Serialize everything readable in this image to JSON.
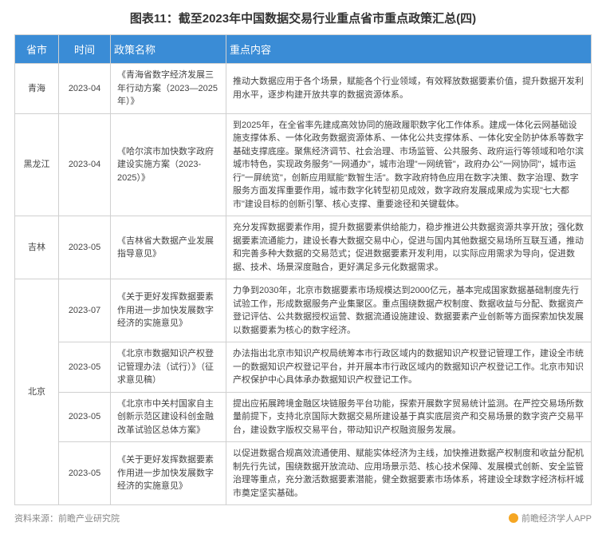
{
  "title": "图表11：截至2023年中国数据交易行业重点省市重点政策汇总(四)",
  "columns": [
    "省市",
    "时间",
    "政策名称",
    "重点内容"
  ],
  "rows": [
    {
      "province": "青海",
      "rowspan_province": 1,
      "time": "2023-04",
      "policy": "《青海省数字经济发展三年行动方案（2023—2025年）》",
      "content": "推动大数据应用于各个场景，赋能各个行业领域，有效释放数据要素价值，提升数据开发利用水平，逐步构建开放共享的数据资源体系。"
    },
    {
      "province": "黑龙江",
      "rowspan_province": 1,
      "time": "2023-04",
      "policy": "《哈尔滨市加快数字政府建设实施方案（2023-2025）》",
      "content": "到2025年，在全省率先建成高效协同的施政履职数字化工作体系。建成一体化云网基础设施支撑体系、一体化政务数据资源体系、一体化公共支撑体系、一体化安全防护体系等数字基础支撑底座。聚焦经济调节、社会治理、市场监管、公共服务、政府运行等领域和哈尔滨城市特色，实现政务服务\"一网通办\"，城市治理\"一网统管\"，政府办公\"一网协同\"，城市运行\"一屏统览\"，创新应用赋能\"数智生活\"。数字政府特色应用在数字决策、数字治理、数字服务方面发挥重要作用，城市数字化转型初见成效，数字政府发展成果成为实现\"七大都市\"建设目标的创新引擎、核心支撑、重要途径和关键载体。"
    },
    {
      "province": "吉林",
      "rowspan_province": 1,
      "time": "2023-05",
      "policy": "《吉林省大数据产业发展指导意见》",
      "content": "充分发挥数据要素作用，提升数据要素供给能力，稳步推进公共数据资源共享开放；强化数据要素流通能力，建设长春大数据交易中心，促进与国内其他数据交易场所互联互通，推动和完善多种大数据的交易范式；促进数据要素开发利用，以实际应用需求为导向，促进数据、技术、场景深度融合，更好满足多元化数据需求。"
    },
    {
      "province": "北京",
      "rowspan_province": 4,
      "time": "2023-07",
      "policy": "《关于更好发挥数据要素作用进一步加快发展数字经济的实施意见》",
      "content": "力争到2030年，北京市数据要素市场规模达到2000亿元，基本完成国家数据基础制度先行试验工作，形成数据服务产业集聚区。重点围绕数据产权制度、数据收益与分配、数据资产登记评估、公共数据授权运营、数据流通设施建设、数据要素产业创新等方面探索加快发展以数据要素为核心的数字经济。"
    },
    {
      "province": "",
      "rowspan_province": 0,
      "time": "2023-05",
      "policy": "《北京市数据知识产权登记管理办法（试行）》（征求意见稿）",
      "content": "办法指出北京市知识产权局统筹本市行政区域内的数据知识产权登记管理工作，建设全市统一的数据知识产权登记平台，并开展本市行政区域内的数据知识产权登记工作。北京市知识产权保护中心具体承办数据知识产权登记工作。"
    },
    {
      "province": "",
      "rowspan_province": 0,
      "time": "2023-05",
      "policy": "《北京市中关村国家自主创新示范区建设科创金融改革试验区总体方案》",
      "content": "提出应拓展跨境金融区块链服务平台功能，探索开展数字贸易统计监测。在严控交易场所数量前提下，支持北京国际大数据交易所建设基于真实底层资产和交易场景的数字资产交易平台，建设数字版权交易平台，带动知识产权融资服务发展。"
    },
    {
      "province": "",
      "rowspan_province": 0,
      "time": "2023-05",
      "policy": "《关于更好发挥数据要素作用进一步加快发展数字经济的实施意见》",
      "content": "以促进数据合规高效流通使用、赋能实体经济为主线，加快推进数据产权制度和收益分配机制先行先试，围绕数据开放流动、应用场景示范、核心技术保障、发展模式创新、安全监管治理等重点，充分激活数据要素潜能，健全数据要素市场体系，将建设全球数字经济标杆城市奠定坚实基础。"
    }
  ],
  "footer_left": "资料来源：前瞻产业研究院",
  "footer_right": "前瞻经济学人APP",
  "colors": {
    "header_bg": "#3a8cd6",
    "header_text": "#ffffff",
    "border": "#d0d0d0",
    "body_text": "#444444",
    "footer_text": "#888888",
    "logo": "#f5a623"
  }
}
